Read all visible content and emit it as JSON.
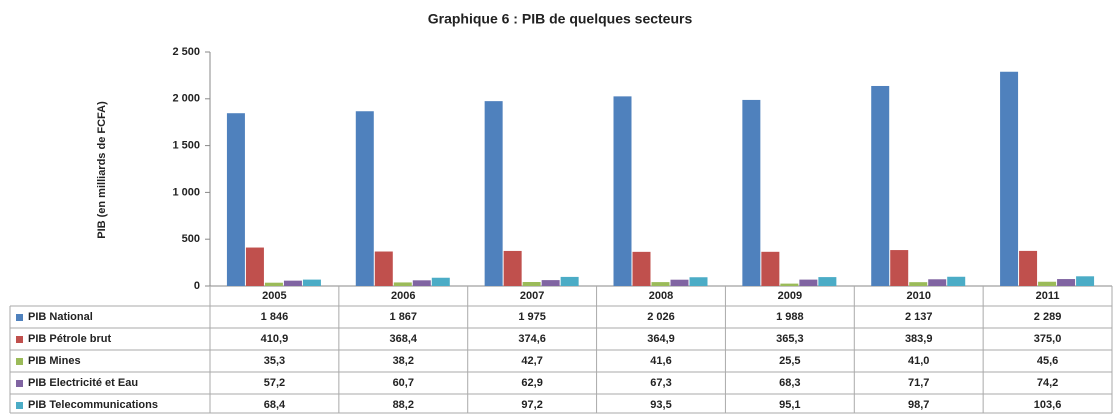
{
  "chart_data": {
    "type": "bar",
    "title": "Graphique 6 : PIB de quelques secteurs",
    "y_label": "PIB (en milliards de FCFA)",
    "categories": [
      "2005",
      "2006",
      "2007",
      "2008",
      "2009",
      "2010",
      "2011"
    ],
    "series": [
      {
        "name": "PIB National",
        "color": "#4f81bd",
        "values": [
          1846,
          1867,
          1975,
          2026,
          1988,
          2137,
          2289
        ],
        "value_labels": [
          "1 846",
          "1 867",
          "1 975",
          "2 026",
          "1 988",
          "2 137",
          "2 289"
        ]
      },
      {
        "name": "PIB Pétrole brut",
        "color": "#c0504d",
        "values": [
          410.9,
          368.4,
          374.6,
          364.9,
          365.3,
          383.9,
          375.0
        ],
        "value_labels": [
          "410,9",
          "368,4",
          "374,6",
          "364,9",
          "365,3",
          "383,9",
          "375,0"
        ]
      },
      {
        "name": "PIB Mines",
        "color": "#9bbb59",
        "values": [
          35.3,
          38.2,
          42.7,
          41.6,
          25.5,
          41.0,
          45.6
        ],
        "value_labels": [
          "35,3",
          "38,2",
          "42,7",
          "41,6",
          "25,5",
          "41,0",
          "45,6"
        ]
      },
      {
        "name": "PIB Electricité et Eau",
        "color": "#8064a2",
        "values": [
          57.2,
          60.7,
          62.9,
          67.3,
          68.3,
          71.7,
          74.2
        ],
        "value_labels": [
          "57,2",
          "60,7",
          "62,9",
          "67,3",
          "68,3",
          "71,7",
          "74,2"
        ]
      },
      {
        "name": "PIB Telecommunications",
        "color": "#4bacc6",
        "values": [
          68.4,
          88.2,
          97.2,
          93.5,
          95.1,
          98.7,
          103.6
        ],
        "value_labels": [
          "68,4",
          "88,2",
          "97,2",
          "93,5",
          "95,1",
          "98,7",
          "103,6"
        ]
      }
    ],
    "ylim": [
      0,
      2500
    ],
    "yticks": [
      0,
      500,
      {
        "value": 1000,
        "label": "1 000"
      },
      {
        "value": 1500,
        "label": "1 500"
      },
      {
        "value": 2000,
        "label": "2 000"
      },
      {
        "value": 2500,
        "label": "2 500"
      }
    ],
    "grid": false
  }
}
